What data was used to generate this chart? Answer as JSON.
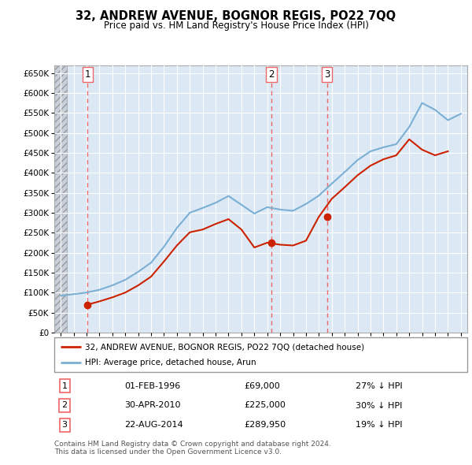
{
  "title": "32, ANDREW AVENUE, BOGNOR REGIS, PO22 7QQ",
  "subtitle": "Price paid vs. HM Land Registry's House Price Index (HPI)",
  "legend_line1": "32, ANDREW AVENUE, BOGNOR REGIS, PO22 7QQ (detached house)",
  "legend_line2": "HPI: Average price, detached house, Arun",
  "footnote1": "Contains HM Land Registry data © Crown copyright and database right 2024.",
  "footnote2": "This data is licensed under the Open Government Licence v3.0.",
  "transactions": [
    {
      "num": 1,
      "date": "01-FEB-1996",
      "price": 69000,
      "pct": "27% ↓ HPI",
      "year": 1996.08
    },
    {
      "num": 2,
      "date": "30-APR-2010",
      "price": 225000,
      "pct": "30% ↓ HPI",
      "year": 2010.33
    },
    {
      "num": 3,
      "date": "22-AUG-2014",
      "price": 289950,
      "pct": "19% ↓ HPI",
      "year": 2014.64
    }
  ],
  "hpi_color": "#7bafd4",
  "price_color": "#cc2200",
  "marker_color": "#cc2200",
  "dashed_color": "#ee6666",
  "background_plot": "#dce9f5",
  "background_hatch_color": "#c8d0dc",
  "grid_color": "#ffffff",
  "ylim": [
    0,
    670000
  ],
  "xlim_start": 1993.5,
  "xlim_end": 2025.5,
  "hpi_data_years": [
    1994,
    1995,
    1996,
    1997,
    1998,
    1999,
    2000,
    2001,
    2002,
    2003,
    2004,
    2005,
    2006,
    2007,
    2008,
    2009,
    2010,
    2011,
    2012,
    2013,
    2014,
    2015,
    2016,
    2017,
    2018,
    2019,
    2020,
    2021,
    2022,
    2023,
    2024,
    2025
  ],
  "hpi_data_values": [
    92000,
    96000,
    100000,
    107000,
    118000,
    132000,
    152000,
    175000,
    215000,
    262000,
    300000,
    312000,
    325000,
    342000,
    320000,
    298000,
    314000,
    308000,
    305000,
    322000,
    343000,
    373000,
    402000,
    432000,
    454000,
    464000,
    472000,
    515000,
    575000,
    558000,
    532000,
    548000
  ],
  "price_data_years": [
    1996,
    1997,
    1998,
    1999,
    2000,
    2001,
    2002,
    2003,
    2004,
    2005,
    2006,
    2007,
    2008,
    2009,
    2010,
    2011,
    2012,
    2013,
    2014,
    2015,
    2016,
    2017,
    2018,
    2019,
    2020,
    2021,
    2022,
    2023,
    2024
  ],
  "price_data_values": [
    69000,
    78000,
    88000,
    100000,
    118000,
    140000,
    178000,
    218000,
    251000,
    258000,
    272000,
    284000,
    258000,
    213000,
    225000,
    220000,
    218000,
    230000,
    289950,
    335000,
    364000,
    394000,
    418000,
    434000,
    444000,
    484000,
    458000,
    444000,
    454000
  ]
}
